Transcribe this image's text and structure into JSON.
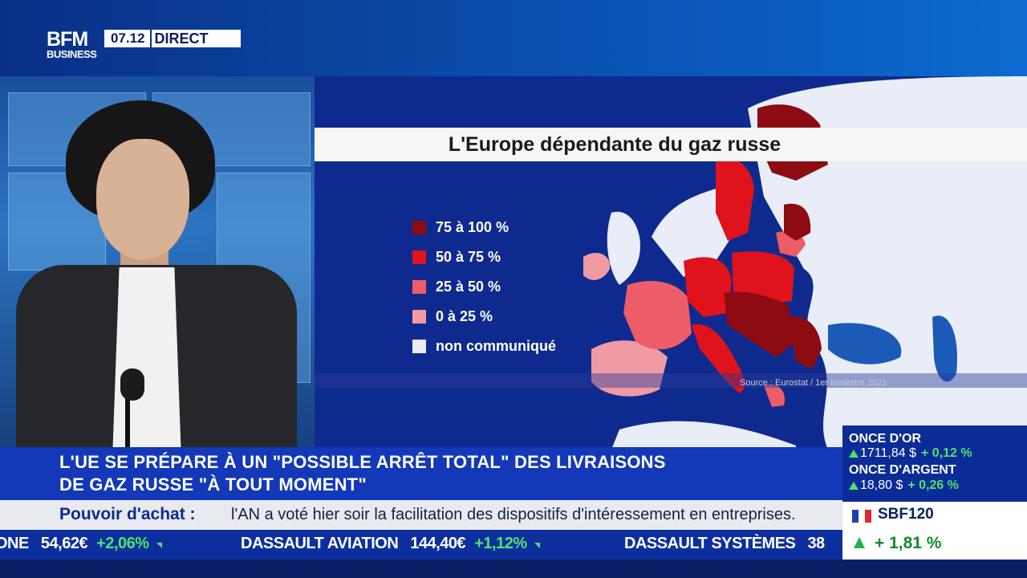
{
  "brand": {
    "logo_top": "BFM",
    "logo_bottom": "BUSINESS",
    "time": "07.12",
    "live_label": "DIRECT"
  },
  "graphic": {
    "title": "L'Europe dépendante du gaz russe",
    "legend": [
      {
        "label": "75 à 100 %",
        "color": "#8e0b12"
      },
      {
        "label": "50 à 75 %",
        "color": "#e0121c"
      },
      {
        "label": "25 à 50 %",
        "color": "#ec5d68"
      },
      {
        "label": "0 à 25 %",
        "color": "#f09aa4"
      },
      {
        "label": "non communiqué",
        "color": "#e8edf7"
      }
    ],
    "source": "Source : Eurostat / 1er trimestre 2021",
    "sea_color": "#0e2a8e",
    "land_color": "#e8edf7",
    "icon": "europe-map"
  },
  "headline": {
    "line1": "L'UE SE PRÉPARE À UN \"POSSIBLE ARRÊT TOTAL\" DES LIVRAISONS",
    "line2": "DE GAZ RUSSE \"À TOUT MOMENT\""
  },
  "ticker": {
    "topic": "Pouvoir d'achat :",
    "text": "l'AN a voté hier soir la facilitation des dispositifs d'intéressement en entreprises."
  },
  "stocks": [
    {
      "name": "ONE",
      "price": "54,62€",
      "change": "+2,06%"
    },
    {
      "name": "DASSAULT AVIATION",
      "price": "144,40€",
      "change": "+1,12%"
    },
    {
      "name": "DASSAULT SYSTÈMES",
      "price": "38",
      "change": ""
    }
  ],
  "markets": [
    {
      "name": "ONCE D'OR",
      "value": "1711,84 $",
      "change": "+ 0,12 %"
    },
    {
      "name": "ONCE D'ARGENT",
      "value": "18,80 $",
      "change": "+ 0,26 %"
    }
  ],
  "index": {
    "name": "SBF120",
    "change": "+ 1,81 %",
    "flag_colors": [
      "#1d3fa8",
      "#ffffff",
      "#e1262d"
    ]
  }
}
